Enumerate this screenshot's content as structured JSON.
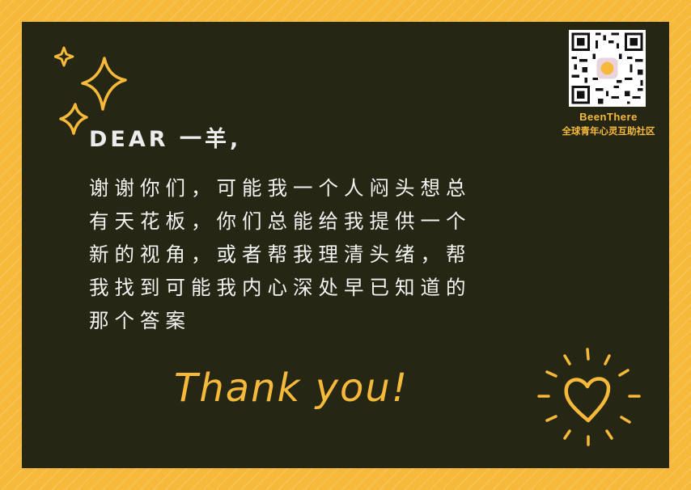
{
  "card": {
    "greeting": "DEAR 一羊,",
    "message_lines": [
      "谢谢你们，可能我一个人闷头想总",
      "有天花板，你们总能给我提供一个",
      "新的视角，或者帮我理清头绪，帮",
      "我找到可能我内心深处早已知道的",
      "那个答案"
    ],
    "closing": "Thank you!"
  },
  "brand": {
    "name": "BeenThere",
    "tagline": "全球青年心灵互助社区"
  },
  "decorations": {
    "sparkle_icon": "sparkles-icon",
    "heart_icon": "heart-rays-icon",
    "qr_icon": "qr-code-icon"
  },
  "colors": {
    "border": "#f6b93a",
    "card": "#262614",
    "accent": "#f6b93a",
    "text": "#f2f2f2"
  }
}
